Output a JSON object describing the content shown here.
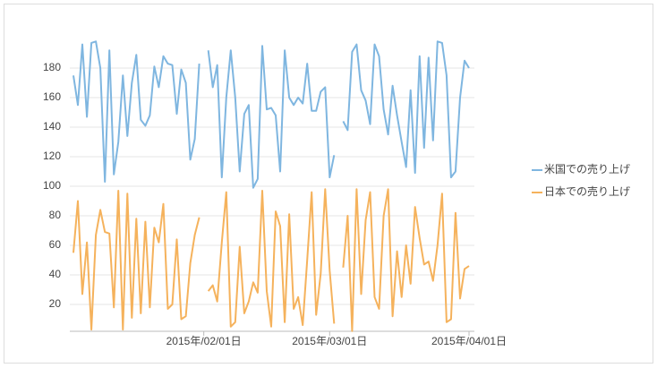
{
  "chart_data": {
    "type": "line",
    "x": [
      "2015-01-03",
      "2015-01-04",
      "2015-01-05",
      "2015-01-06",
      "2015-01-07",
      "2015-01-08",
      "2015-01-09",
      "2015-01-10",
      "2015-01-11",
      "2015-01-12",
      "2015-01-13",
      "2015-01-14",
      "2015-01-15",
      "2015-01-16",
      "2015-01-17",
      "2015-01-18",
      "2015-01-19",
      "2015-01-20",
      "2015-01-21",
      "2015-01-22",
      "2015-01-23",
      "2015-01-24",
      "2015-01-25",
      "2015-01-26",
      "2015-01-27",
      "2015-01-28",
      "2015-01-29",
      "2015-01-30",
      "2015-01-31",
      "2015-02-01",
      "2015-02-02",
      "2015-02-03",
      "2015-02-04",
      "2015-02-05",
      "2015-02-06",
      "2015-02-07",
      "2015-02-08",
      "2015-02-09",
      "2015-02-10",
      "2015-02-11",
      "2015-02-12",
      "2015-02-13",
      "2015-02-14",
      "2015-02-15",
      "2015-02-16",
      "2015-02-17",
      "2015-02-18",
      "2015-02-19",
      "2015-02-20",
      "2015-02-21",
      "2015-02-22",
      "2015-02-23",
      "2015-02-24",
      "2015-02-25",
      "2015-02-26",
      "2015-02-27",
      "2015-02-28",
      "2015-03-01",
      "2015-03-02",
      "2015-03-03",
      "2015-03-04",
      "2015-03-05",
      "2015-03-06",
      "2015-03-07",
      "2015-03-08",
      "2015-03-09",
      "2015-03-10",
      "2015-03-11",
      "2015-03-12",
      "2015-03-13",
      "2015-03-14",
      "2015-03-15",
      "2015-03-16",
      "2015-03-17",
      "2015-03-18",
      "2015-03-19",
      "2015-03-20",
      "2015-03-21",
      "2015-03-22",
      "2015-03-23",
      "2015-03-24",
      "2015-03-25",
      "2015-03-26",
      "2015-03-27",
      "2015-03-28",
      "2015-03-29",
      "2015-03-30",
      "2015-03-31",
      "2015-04-01"
    ],
    "series": [
      {
        "name": "米国での売り上げ",
        "color": "#7fb6e0",
        "values": [
          175,
          155,
          196,
          147,
          197,
          198,
          180,
          103,
          192,
          108,
          130,
          175,
          134,
          170,
          189,
          145,
          141,
          148,
          181,
          167,
          188,
          183,
          182,
          149,
          179,
          170,
          118,
          132,
          183,
          null,
          192,
          167,
          182,
          106,
          160,
          192,
          160,
          110,
          149,
          155,
          99,
          105,
          195,
          152,
          153,
          148,
          110,
          192,
          160,
          155,
          160,
          156,
          183,
          151,
          151,
          164,
          167,
          106,
          121,
          null,
          144,
          138,
          191,
          196,
          165,
          158,
          142,
          196,
          188,
          152,
          135,
          168,
          148,
          130,
          113,
          165,
          109,
          188,
          126,
          187,
          131,
          198,
          197,
          175,
          106,
          110,
          160,
          185,
          180
        ]
      },
      {
        "name": "日本での売り上げ",
        "color": "#f5b25c",
        "values": [
          55,
          90,
          27,
          62,
          3,
          67,
          84,
          69,
          68,
          18,
          97,
          3,
          95,
          11,
          78,
          14,
          76,
          18,
          72,
          62,
          88,
          17,
          20,
          64,
          10,
          12,
          48,
          67,
          79,
          null,
          29,
          33,
          22,
          62,
          96,
          5,
          8,
          59,
          14,
          22,
          35,
          28,
          97,
          29,
          5,
          83,
          73,
          8,
          81,
          17,
          25,
          6,
          50,
          96,
          13,
          41,
          98,
          43,
          7,
          null,
          45,
          80,
          2,
          98,
          27,
          77,
          96,
          25,
          17,
          80,
          98,
          12,
          56,
          25,
          60,
          34,
          86,
          65,
          47,
          49,
          36,
          60,
          95,
          8,
          10,
          82,
          24,
          44,
          46
        ]
      }
    ],
    "xlim": [
      "2015-01-03",
      "2015-04-01"
    ],
    "xticks": [
      {
        "value": "2015-02-01",
        "label": "2015年/02/01日"
      },
      {
        "value": "2015-03-01",
        "label": "2015年/03/01日"
      },
      {
        "value": "2015-04-01",
        "label": "2015年/04/01日"
      }
    ],
    "ylim": [
      0,
      200
    ],
    "yticks": [
      20,
      40,
      60,
      80,
      100,
      120,
      140,
      160,
      180
    ],
    "grid": true,
    "legend": "right"
  }
}
